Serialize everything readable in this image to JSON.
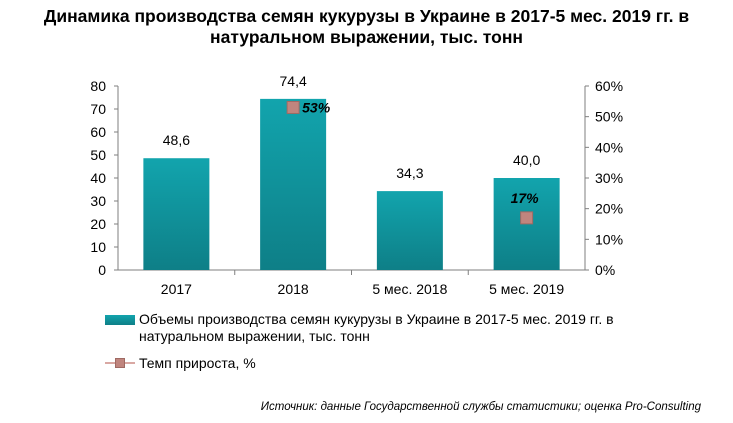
{
  "title": "Динамика производства семян кукурузы в Украине в 2017-5 мес. 2019 гг. в натуральном выражении, тыс. тонн",
  "source": "Источник: данные Государственной службы статистики; оценка Pro-Consulting",
  "colors": {
    "bar": "#12a4ad",
    "bar_dark": "#0e7f87",
    "marker": "#c0857e"
  },
  "chart_data": {
    "type": "bar",
    "categories": [
      "2017",
      "2018",
      "5 мес. 2018",
      "5 мес. 2019"
    ],
    "series": [
      {
        "name": "Объемы производства семян кукурузы в Украине в 2017-5 мес. 2019 гг. в натуральном выражении, тыс. тонн",
        "type": "bar",
        "axis": "left",
        "values": [
          48.6,
          74.4,
          34.3,
          40.0
        ],
        "labels": [
          "48,6",
          "74,4",
          "34,3",
          "40,0"
        ]
      },
      {
        "name": "Темп прироста, %",
        "type": "line-markers",
        "axis": "right",
        "values": [
          null,
          53,
          null,
          17
        ],
        "labels": [
          "",
          "53%",
          "",
          "17%"
        ]
      }
    ],
    "y_left": {
      "min": 0,
      "max": 80,
      "ticks": [
        "0",
        "10",
        "20",
        "30",
        "40",
        "50",
        "60",
        "70",
        "80"
      ]
    },
    "y_right": {
      "min": 0,
      "max": 60,
      "ticks": [
        "0%",
        "10%",
        "20%",
        "30%",
        "40%",
        "50%",
        "60%"
      ]
    },
    "grid": false,
    "legend_position": "bottom"
  }
}
